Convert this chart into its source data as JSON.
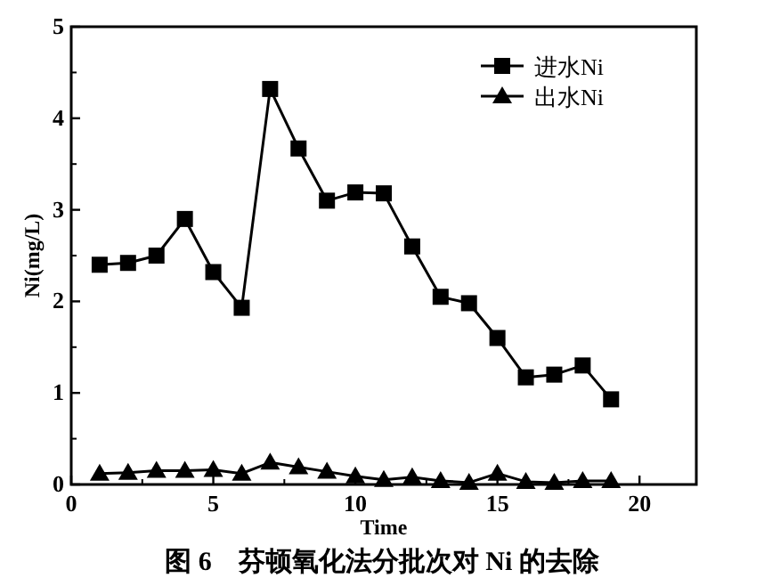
{
  "chart_data": {
    "type": "line",
    "title": "图 6　芬顿氧化法分批次对 Ni 的去除",
    "xlabel": "Time",
    "ylabel": "Ni(mg/L)",
    "x": [
      1,
      2,
      3,
      4,
      5,
      6,
      7,
      8,
      9,
      10,
      11,
      12,
      13,
      14,
      15,
      16,
      17,
      18,
      19
    ],
    "series": [
      {
        "name": "进水Ni",
        "color": "#000000",
        "marker": "square",
        "values": [
          2.4,
          2.42,
          2.5,
          2.9,
          2.32,
          1.93,
          4.32,
          3.67,
          3.1,
          3.19,
          3.18,
          2.6,
          2.05,
          1.98,
          1.6,
          1.17,
          1.2,
          1.3,
          0.93
        ]
      },
      {
        "name": "出水Ni",
        "color": "#000000",
        "marker": "triangle",
        "values": [
          0.12,
          0.13,
          0.15,
          0.15,
          0.16,
          0.12,
          0.24,
          0.19,
          0.14,
          0.09,
          0.05,
          0.08,
          0.04,
          0.02,
          0.12,
          0.03,
          0.02,
          0.04,
          0.04
        ]
      }
    ],
    "xlim": [
      0,
      22
    ],
    "xticks": [
      0,
      5,
      10,
      15,
      20
    ],
    "ylim": [
      0,
      5
    ],
    "yticks": [
      0,
      1,
      2,
      3,
      4,
      5
    ],
    "legend": "top right",
    "grid": false,
    "line_style": "solid"
  }
}
